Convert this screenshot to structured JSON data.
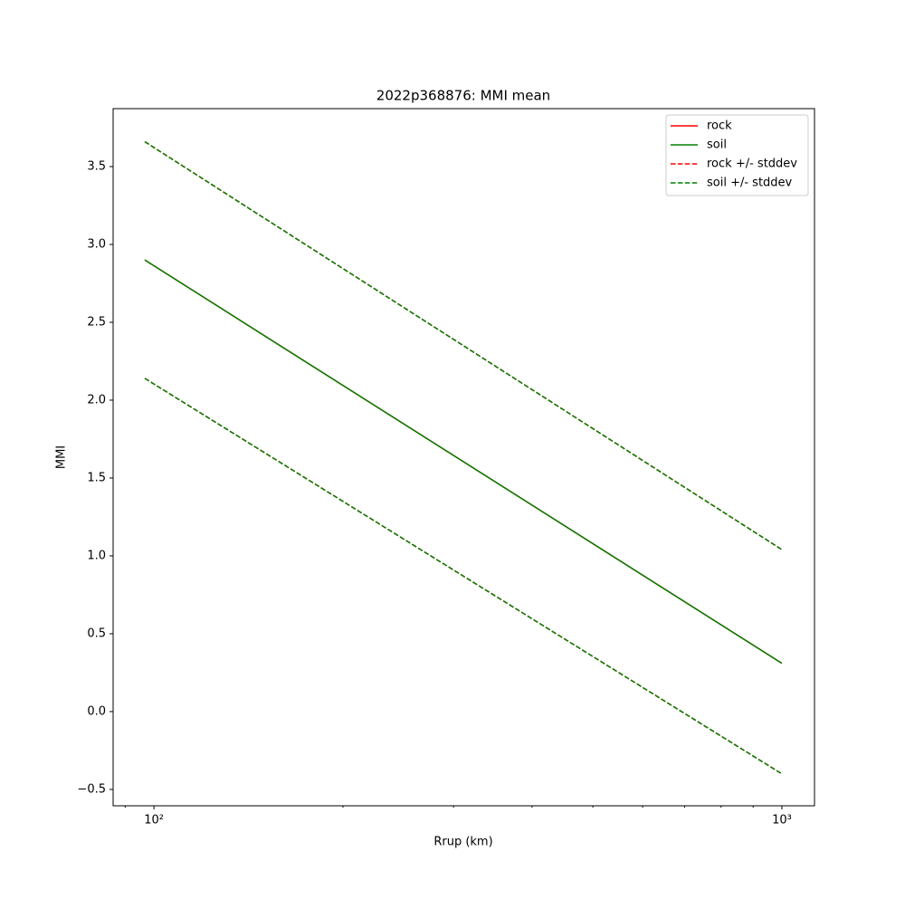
{
  "chart_data": {
    "type": "line",
    "title": "2022p368876: MMI mean",
    "xlabel": "Rrup (km)",
    "ylabel": "MMI",
    "xscale": "log",
    "x": [
      96.7,
      1000
    ],
    "series": [
      {
        "name": "rock",
        "color": "#ff0000",
        "dashed": false,
        "values": [
          2.9,
          0.31
        ]
      },
      {
        "name": "soil",
        "color": "#008000",
        "dashed": false,
        "values": [
          2.9,
          0.31
        ]
      },
      {
        "name": "rock +/- stddev",
        "color": "#ff0000",
        "dashed": true,
        "upper": [
          3.66,
          1.04
        ],
        "lower": [
          2.14,
          -0.4
        ]
      },
      {
        "name": "soil +/- stddev",
        "color": "#008000",
        "dashed": true,
        "upper": [
          3.66,
          1.04
        ],
        "lower": [
          2.14,
          -0.4
        ]
      }
    ],
    "xlim": [
      86.1,
      1127
    ],
    "xticks": [
      {
        "value": 100,
        "label": "10²"
      },
      {
        "value": 1000,
        "label": "10³"
      }
    ],
    "xminorticks": [
      90,
      200,
      300,
      400,
      500,
      600,
      700,
      800,
      900
    ],
    "ylim": [
      -0.605,
      3.872
    ],
    "yticks": [
      {
        "value": -0.5,
        "label": "−0.5"
      },
      {
        "value": 0,
        "label": "0.0"
      },
      0.5,
      {
        "value": 1,
        "label": "1.0"
      },
      1.5,
      {
        "value": 2,
        "label": "2.0"
      },
      2.5,
      {
        "value": 3,
        "label": "3.0"
      },
      3.5
    ],
    "legend": "upper right"
  }
}
